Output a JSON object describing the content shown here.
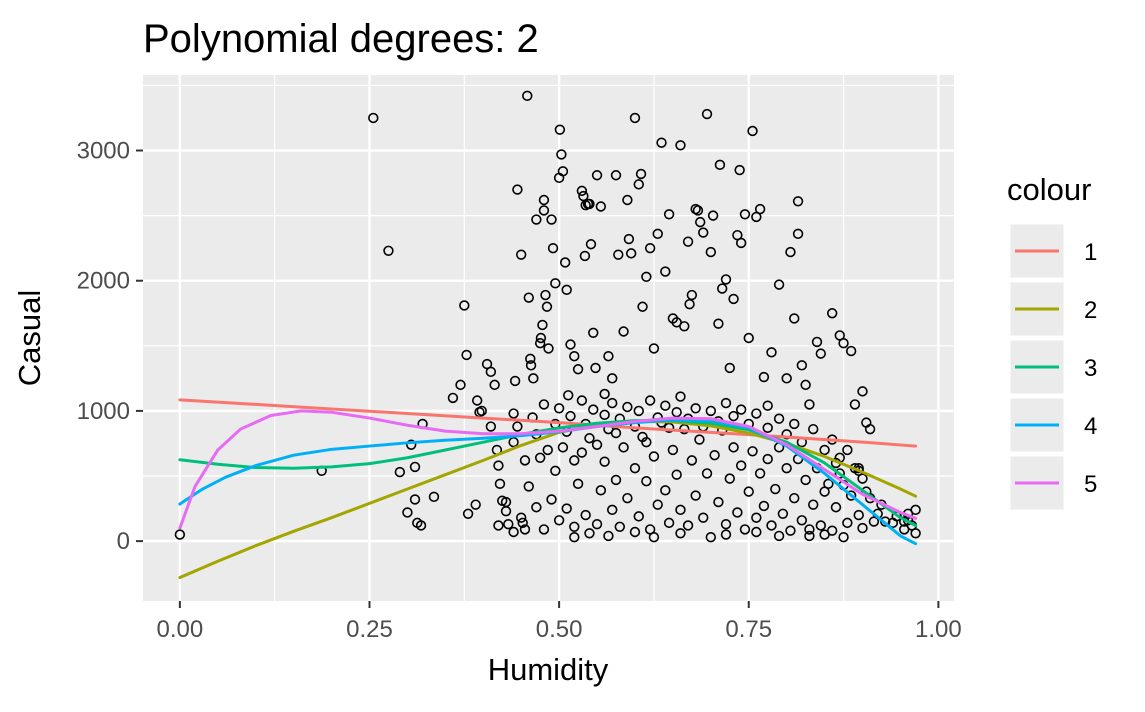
{
  "chart_data": {
    "type": "scatter",
    "title": "Polynomial degrees: 2",
    "xlabel": "Humidity",
    "ylabel": "Casual",
    "xlim": [
      -0.0486,
      1.0206
    ],
    "ylim": [
      -460,
      3580
    ],
    "x_ticks": [
      0,
      0.25,
      0.5,
      0.75,
      1
    ],
    "x_tick_labels": [
      "0.00",
      "0.25",
      "0.50",
      "0.75",
      "1.00"
    ],
    "y_ticks": [
      0,
      1000,
      2000,
      3000
    ],
    "y_tick_labels": [
      "0",
      "1000",
      "2000",
      "3000"
    ],
    "grid": true,
    "legend": {
      "title": "colour",
      "position": "right",
      "entries": [
        "1",
        "2",
        "3",
        "4",
        "5"
      ]
    },
    "colors": {
      "panel_background": "#EBEBEB",
      "grid": "#FFFFFF",
      "points": "#000000",
      "series": [
        "#F8766D",
        "#A3A500",
        "#00BF7D",
        "#00B0F6",
        "#E76BF3"
      ]
    },
    "points": [
      [
        0.0,
        50
      ],
      [
        0.187,
        540
      ],
      [
        0.255,
        3250
      ],
      [
        0.275,
        2230
      ],
      [
        0.29,
        530
      ],
      [
        0.3,
        220
      ],
      [
        0.305,
        740
      ],
      [
        0.31,
        570
      ],
      [
        0.31,
        320
      ],
      [
        0.313,
        140
      ],
      [
        0.318,
        120
      ],
      [
        0.32,
        900
      ],
      [
        0.335,
        340
      ],
      [
        0.36,
        1100
      ],
      [
        0.37,
        1200
      ],
      [
        0.375,
        1810
      ],
      [
        0.378,
        1430
      ],
      [
        0.38,
        210
      ],
      [
        0.39,
        280
      ],
      [
        0.392,
        1080
      ],
      [
        0.395,
        990
      ],
      [
        0.398,
        1000
      ],
      [
        0.405,
        1360
      ],
      [
        0.41,
        1300
      ],
      [
        0.415,
        1200
      ],
      [
        0.41,
        880
      ],
      [
        0.418,
        700
      ],
      [
        0.42,
        580
      ],
      [
        0.422,
        440
      ],
      [
        0.425,
        310
      ],
      [
        0.43,
        230
      ],
      [
        0.433,
        130
      ],
      [
        0.44,
        980
      ],
      [
        0.442,
        1230
      ],
      [
        0.445,
        2700
      ],
      [
        0.45,
        2200
      ],
      [
        0.452,
        140
      ],
      [
        0.455,
        90
      ],
      [
        0.458,
        3420
      ],
      [
        0.46,
        1870
      ],
      [
        0.462,
        1400
      ],
      [
        0.463,
        1350
      ],
      [
        0.466,
        1250
      ],
      [
        0.47,
        2470
      ],
      [
        0.475,
        1520
      ],
      [
        0.476,
        1560
      ],
      [
        0.478,
        1660
      ],
      [
        0.48,
        2620
      ],
      [
        0.48,
        2540
      ],
      [
        0.482,
        1890
      ],
      [
        0.484,
        1800
      ],
      [
        0.486,
        1480
      ],
      [
        0.49,
        2470
      ],
      [
        0.492,
        2250
      ],
      [
        0.495,
        1980
      ],
      [
        0.5,
        2790
      ],
      [
        0.501,
        3160
      ],
      [
        0.503,
        2970
      ],
      [
        0.505,
        2840
      ],
      [
        0.508,
        2140
      ],
      [
        0.51,
        1930
      ],
      [
        0.512,
        1120
      ],
      [
        0.515,
        1510
      ],
      [
        0.52,
        1420
      ],
      [
        0.525,
        1320
      ],
      [
        0.53,
        2690
      ],
      [
        0.532,
        2650
      ],
      [
        0.534,
        2190
      ],
      [
        0.535,
        2580
      ],
      [
        0.538,
        2590
      ],
      [
        0.54,
        2590
      ],
      [
        0.542,
        2280
      ],
      [
        0.545,
        1600
      ],
      [
        0.548,
        1330
      ],
      [
        0.55,
        2810
      ],
      [
        0.555,
        2570
      ],
      [
        0.56,
        1130
      ],
      [
        0.565,
        1420
      ],
      [
        0.57,
        1250
      ],
      [
        0.575,
        2810
      ],
      [
        0.578,
        2200
      ],
      [
        0.585,
        1610
      ],
      [
        0.59,
        2620
      ],
      [
        0.592,
        2320
      ],
      [
        0.595,
        2210
      ],
      [
        0.6,
        3250
      ],
      [
        0.605,
        2740
      ],
      [
        0.608,
        2820
      ],
      [
        0.61,
        1800
      ],
      [
        0.615,
        2030
      ],
      [
        0.62,
        2250
      ],
      [
        0.625,
        1480
      ],
      [
        0.63,
        2360
      ],
      [
        0.635,
        3060
      ],
      [
        0.64,
        2070
      ],
      [
        0.645,
        2510
      ],
      [
        0.65,
        1710
      ],
      [
        0.655,
        1680
      ],
      [
        0.66,
        3040
      ],
      [
        0.665,
        1650
      ],
      [
        0.67,
        2300
      ],
      [
        0.672,
        1820
      ],
      [
        0.675,
        1890
      ],
      [
        0.68,
        2550
      ],
      [
        0.683,
        2540
      ],
      [
        0.686,
        2450
      ],
      [
        0.69,
        2370
      ],
      [
        0.695,
        3280
      ],
      [
        0.7,
        2220
      ],
      [
        0.703,
        2500
      ],
      [
        0.71,
        1670
      ],
      [
        0.712,
        2890
      ],
      [
        0.715,
        1940
      ],
      [
        0.72,
        2010
      ],
      [
        0.725,
        1330
      ],
      [
        0.73,
        1860
      ],
      [
        0.735,
        2350
      ],
      [
        0.738,
        2850
      ],
      [
        0.74,
        2290
      ],
      [
        0.745,
        2510
      ],
      [
        0.75,
        1560
      ],
      [
        0.755,
        3150
      ],
      [
        0.76,
        2490
      ],
      [
        0.765,
        2550
      ],
      [
        0.77,
        1260
      ],
      [
        0.775,
        1040
      ],
      [
        0.78,
        1450
      ],
      [
        0.79,
        1970
      ],
      [
        0.8,
        1250
      ],
      [
        0.805,
        2220
      ],
      [
        0.81,
        1710
      ],
      [
        0.815,
        2360
      ],
      [
        0.815,
        2610
      ],
      [
        0.82,
        1350
      ],
      [
        0.825,
        1200
      ],
      [
        0.83,
        1050
      ],
      [
        0.84,
        1530
      ],
      [
        0.845,
        1440
      ],
      [
        0.86,
        1750
      ],
      [
        0.87,
        1580
      ],
      [
        0.875,
        1520
      ],
      [
        0.885,
        1460
      ],
      [
        0.89,
        1050
      ],
      [
        0.9,
        1150
      ],
      [
        0.905,
        910
      ],
      [
        0.91,
        860
      ],
      [
        0.915,
        150
      ],
      [
        0.92,
        210
      ],
      [
        0.925,
        280
      ],
      [
        0.93,
        150
      ],
      [
        0.94,
        140
      ],
      [
        0.945,
        190
      ],
      [
        0.955,
        90
      ],
      [
        0.96,
        160
      ],
      [
        0.97,
        60
      ],
      [
        0.97,
        240
      ],
      [
        0.42,
        120
      ],
      [
        0.43,
        300
      ],
      [
        0.44,
        70
      ],
      [
        0.45,
        180
      ],
      [
        0.46,
        420
      ],
      [
        0.47,
        260
      ],
      [
        0.475,
        640
      ],
      [
        0.48,
        90
      ],
      [
        0.49,
        320
      ],
      [
        0.495,
        540
      ],
      [
        0.5,
        160
      ],
      [
        0.505,
        720
      ],
      [
        0.51,
        250
      ],
      [
        0.52,
        110
      ],
      [
        0.525,
        440
      ],
      [
        0.53,
        680
      ],
      [
        0.535,
        200
      ],
      [
        0.54,
        790
      ],
      [
        0.55,
        130
      ],
      [
        0.555,
        390
      ],
      [
        0.56,
        610
      ],
      [
        0.565,
        860
      ],
      [
        0.57,
        240
      ],
      [
        0.575,
        470
      ],
      [
        0.58,
        110
      ],
      [
        0.585,
        720
      ],
      [
        0.59,
        330
      ],
      [
        0.6,
        560
      ],
      [
        0.605,
        190
      ],
      [
        0.61,
        800
      ],
      [
        0.615,
        460
      ],
      [
        0.62,
        90
      ],
      [
        0.625,
        650
      ],
      [
        0.63,
        280
      ],
      [
        0.635,
        910
      ],
      [
        0.64,
        390
      ],
      [
        0.645,
        140
      ],
      [
        0.65,
        700
      ],
      [
        0.655,
        510
      ],
      [
        0.66,
        240
      ],
      [
        0.665,
        860
      ],
      [
        0.67,
        120
      ],
      [
        0.675,
        620
      ],
      [
        0.68,
        350
      ],
      [
        0.685,
        780
      ],
      [
        0.69,
        180
      ],
      [
        0.695,
        520
      ],
      [
        0.7,
        30
      ],
      [
        0.705,
        660
      ],
      [
        0.71,
        300
      ],
      [
        0.715,
        850
      ],
      [
        0.72,
        130
      ],
      [
        0.725,
        480
      ],
      [
        0.73,
        720
      ],
      [
        0.735,
        220
      ],
      [
        0.74,
        580
      ],
      [
        0.745,
        90
      ],
      [
        0.75,
        380
      ],
      [
        0.755,
        690
      ],
      [
        0.76,
        180
      ],
      [
        0.765,
        520
      ],
      [
        0.77,
        270
      ],
      [
        0.775,
        630
      ],
      [
        0.78,
        120
      ],
      [
        0.785,
        400
      ],
      [
        0.79,
        720
      ],
      [
        0.795,
        210
      ],
      [
        0.8,
        560
      ],
      [
        0.805,
        80
      ],
      [
        0.81,
        330
      ],
      [
        0.815,
        630
      ],
      [
        0.82,
        160
      ],
      [
        0.825,
        470
      ],
      [
        0.83,
        40
      ],
      [
        0.835,
        280
      ],
      [
        0.84,
        560
      ],
      [
        0.845,
        120
      ],
      [
        0.85,
        380
      ],
      [
        0.86,
        80
      ],
      [
        0.865,
        260
      ],
      [
        0.87,
        520
      ],
      [
        0.875,
        30
      ],
      [
        0.88,
        140
      ],
      [
        0.885,
        350
      ],
      [
        0.89,
        560
      ],
      [
        0.895,
        200
      ],
      [
        0.9,
        100
      ],
      [
        0.91,
        330
      ],
      [
        0.44,
        760
      ],
      [
        0.445,
        880
      ],
      [
        0.455,
        620
      ],
      [
        0.465,
        950
      ],
      [
        0.47,
        820
      ],
      [
        0.48,
        1050
      ],
      [
        0.485,
        700
      ],
      [
        0.495,
        900
      ],
      [
        0.5,
        1020
      ],
      [
        0.51,
        840
      ],
      [
        0.515,
        960
      ],
      [
        0.52,
        620
      ],
      [
        0.53,
        1080
      ],
      [
        0.535,
        900
      ],
      [
        0.545,
        1010
      ],
      [
        0.55,
        740
      ],
      [
        0.56,
        970
      ],
      [
        0.57,
        1060
      ],
      [
        0.575,
        830
      ],
      [
        0.58,
        940
      ],
      [
        0.59,
        1030
      ],
      [
        0.6,
        880
      ],
      [
        0.605,
        1000
      ],
      [
        0.615,
        760
      ],
      [
        0.62,
        1080
      ],
      [
        0.63,
        950
      ],
      [
        0.64,
        1040
      ],
      [
        0.645,
        870
      ],
      [
        0.655,
        990
      ],
      [
        0.66,
        1110
      ],
      [
        0.67,
        940
      ],
      [
        0.68,
        1020
      ],
      [
        0.69,
        880
      ],
      [
        0.7,
        1000
      ],
      [
        0.71,
        920
      ],
      [
        0.72,
        1060
      ],
      [
        0.73,
        960
      ],
      [
        0.74,
        1010
      ],
      [
        0.75,
        900
      ],
      [
        0.76,
        980
      ],
      [
        0.775,
        870
      ],
      [
        0.79,
        940
      ],
      [
        0.8,
        820
      ],
      [
        0.81,
        900
      ],
      [
        0.82,
        760
      ],
      [
        0.835,
        860
      ],
      [
        0.85,
        700
      ],
      [
        0.86,
        780
      ],
      [
        0.87,
        640
      ],
      [
        0.88,
        700
      ],
      [
        0.895,
        560
      ],
      [
        0.9,
        480
      ],
      [
        0.52,
        30
      ],
      [
        0.54,
        60
      ],
      [
        0.565,
        40
      ],
      [
        0.6,
        70
      ],
      [
        0.625,
        30
      ],
      [
        0.66,
        60
      ],
      [
        0.72,
        50
      ],
      [
        0.76,
        70
      ],
      [
        0.79,
        40
      ],
      [
        0.83,
        90
      ],
      [
        0.85,
        50
      ],
      [
        0.855,
        440
      ],
      [
        0.865,
        600
      ],
      [
        0.875,
        430
      ],
      [
        0.895,
        540
      ],
      [
        0.905,
        380
      ],
      [
        0.955,
        150
      ],
      [
        0.96,
        210
      ],
      [
        0.965,
        120
      ]
    ],
    "series": [
      {
        "name": "1",
        "x": [
          0,
          0.1,
          0.2,
          0.3,
          0.4,
          0.5,
          0.6,
          0.7,
          0.8,
          0.9,
          0.97
        ],
        "y": [
          1085,
          1050,
          1015,
          980,
          945,
          910,
          870,
          835,
          800,
          760,
          730
        ]
      },
      {
        "name": "2",
        "x": [
          0,
          0.05,
          0.1,
          0.15,
          0.2,
          0.25,
          0.3,
          0.35,
          0.4,
          0.45,
          0.5,
          0.55,
          0.6,
          0.65,
          0.7,
          0.75,
          0.8,
          0.85,
          0.9,
          0.95,
          0.97
        ],
        "y": [
          -280,
          -155,
          -35,
          75,
          180,
          290,
          400,
          510,
          620,
          735,
          835,
          895,
          920,
          915,
          885,
          830,
          750,
          650,
          530,
          400,
          345
        ]
      },
      {
        "name": "3",
        "x": [
          0,
          0.05,
          0.1,
          0.15,
          0.2,
          0.25,
          0.3,
          0.35,
          0.4,
          0.45,
          0.5,
          0.55,
          0.6,
          0.65,
          0.7,
          0.75,
          0.8,
          0.85,
          0.9,
          0.95,
          0.97
        ],
        "y": [
          625,
          590,
          565,
          560,
          570,
          595,
          640,
          700,
          760,
          820,
          870,
          905,
          925,
          925,
          905,
          855,
          760,
          600,
          390,
          180,
          120
        ]
      },
      {
        "name": "4",
        "x": [
          0,
          0.03,
          0.06,
          0.1,
          0.15,
          0.2,
          0.25,
          0.3,
          0.35,
          0.4,
          0.45,
          0.5,
          0.55,
          0.6,
          0.65,
          0.7,
          0.75,
          0.8,
          0.85,
          0.9,
          0.95,
          0.97
        ],
        "y": [
          285,
          400,
          490,
          580,
          660,
          705,
          730,
          755,
          775,
          790,
          810,
          840,
          880,
          910,
          930,
          925,
          870,
          730,
          520,
          280,
          40,
          -20
        ]
      },
      {
        "name": "5",
        "x": [
          0,
          0.02,
          0.05,
          0.08,
          0.12,
          0.16,
          0.2,
          0.25,
          0.3,
          0.35,
          0.4,
          0.45,
          0.5,
          0.55,
          0.6,
          0.65,
          0.7,
          0.75,
          0.8,
          0.85,
          0.9,
          0.95,
          0.97
        ],
        "y": [
          100,
          420,
          700,
          860,
          965,
          1000,
          990,
          945,
          890,
          845,
          825,
          825,
          845,
          880,
          920,
          945,
          940,
          880,
          740,
          550,
          360,
          220,
          175
        ]
      }
    ]
  }
}
